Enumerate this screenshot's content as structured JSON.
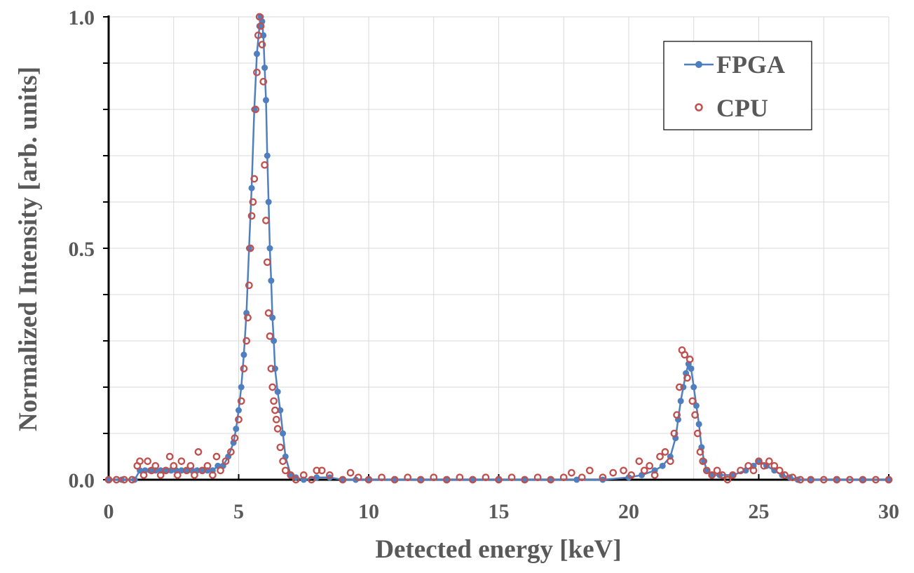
{
  "chart_data": {
    "type": "scatter",
    "xlabel": "Detected energy [keV]",
    "ylabel": "Normalized Intensity [arb. units]",
    "xlim": [
      0,
      30
    ],
    "ylim": [
      0,
      1.0
    ],
    "xticks": [
      "0",
      "5",
      "10",
      "15",
      "20",
      "25",
      "30"
    ],
    "yticks": [
      "0.0",
      "0.5",
      "1.0"
    ],
    "grid": true,
    "legend_position": "top-right",
    "series": [
      {
        "name": "FPGA",
        "style": "line-with-filled-markers",
        "color": "#4F7FBE",
        "x": [
          0.0,
          0.5,
          1.0,
          1.2,
          1.4,
          1.6,
          1.8,
          2.0,
          2.2,
          2.4,
          2.6,
          2.8,
          3.0,
          3.2,
          3.4,
          3.6,
          3.8,
          4.0,
          4.2,
          4.4,
          4.6,
          4.8,
          4.9,
          5.0,
          5.1,
          5.2,
          5.3,
          5.4,
          5.5,
          5.6,
          5.7,
          5.8,
          5.85,
          5.9,
          5.95,
          6.0,
          6.05,
          6.1,
          6.15,
          6.2,
          6.25,
          6.3,
          6.35,
          6.4,
          6.5,
          6.6,
          6.7,
          6.8,
          7.0,
          7.2,
          7.5,
          8.0,
          8.5,
          9.0,
          9.5,
          10.0,
          11.0,
          12.0,
          13.0,
          14.0,
          15.0,
          16.0,
          17.0,
          18.0,
          19.0,
          20.0,
          20.5,
          21.0,
          21.3,
          21.6,
          21.8,
          21.9,
          22.0,
          22.1,
          22.2,
          22.3,
          22.4,
          22.5,
          22.6,
          22.7,
          22.8,
          22.9,
          23.0,
          23.2,
          23.5,
          24.0,
          24.5,
          24.8,
          25.0,
          25.3,
          25.6,
          25.9,
          26.2,
          26.5,
          27.0,
          28.0,
          29.0,
          30.0
        ],
        "values": [
          0.0,
          0.0,
          0.0,
          0.02,
          0.02,
          0.02,
          0.02,
          0.02,
          0.02,
          0.02,
          0.02,
          0.02,
          0.02,
          0.02,
          0.02,
          0.02,
          0.02,
          0.02,
          0.03,
          0.03,
          0.05,
          0.08,
          0.11,
          0.15,
          0.2,
          0.27,
          0.36,
          0.5,
          0.63,
          0.8,
          0.92,
          0.98,
          1.0,
          0.99,
          0.96,
          0.89,
          0.82,
          0.7,
          0.6,
          0.5,
          0.43,
          0.35,
          0.3,
          0.24,
          0.19,
          0.15,
          0.1,
          0.05,
          0.01,
          0.005,
          0.0,
          0.005,
          0.005,
          0.0,
          0.0,
          0.0,
          0.0,
          0.0,
          0.0,
          0.0,
          0.0,
          0.0,
          0.0,
          0.0,
          0.0,
          0.005,
          0.01,
          0.02,
          0.03,
          0.05,
          0.09,
          0.13,
          0.17,
          0.2,
          0.23,
          0.25,
          0.24,
          0.2,
          0.16,
          0.12,
          0.07,
          0.04,
          0.02,
          0.01,
          0.01,
          0.01,
          0.02,
          0.03,
          0.04,
          0.03,
          0.02,
          0.01,
          0.005,
          0.0,
          0.0,
          0.0,
          0.0,
          0.0
        ]
      },
      {
        "name": "CPU",
        "style": "hollow-markers",
        "color": "#C0504D",
        "x": [
          0.0,
          0.3,
          0.6,
          0.9,
          1.1,
          1.2,
          1.35,
          1.5,
          1.65,
          1.8,
          2.0,
          2.2,
          2.35,
          2.5,
          2.65,
          2.8,
          3.0,
          3.15,
          3.3,
          3.45,
          3.6,
          3.8,
          4.0,
          4.15,
          4.3,
          4.5,
          4.7,
          4.85,
          5.0,
          5.1,
          5.2,
          5.3,
          5.35,
          5.4,
          5.45,
          5.5,
          5.55,
          5.6,
          5.65,
          5.7,
          5.75,
          5.8,
          5.85,
          5.9,
          5.95,
          6.0,
          6.05,
          6.1,
          6.15,
          6.2,
          6.25,
          6.3,
          6.35,
          6.4,
          6.45,
          6.5,
          6.6,
          6.7,
          6.8,
          7.0,
          7.2,
          7.5,
          7.8,
          8.0,
          8.2,
          8.5,
          9.0,
          9.3,
          9.6,
          10.0,
          10.5,
          11.0,
          11.5,
          12.0,
          12.5,
          13.0,
          13.5,
          14.0,
          14.5,
          15.0,
          15.5,
          16.0,
          16.5,
          17.0,
          17.5,
          17.8,
          18.2,
          18.5,
          19.0,
          19.4,
          19.8,
          20.1,
          20.4,
          20.6,
          20.8,
          21.0,
          21.2,
          21.4,
          21.6,
          21.75,
          21.85,
          21.95,
          22.05,
          22.15,
          22.25,
          22.35,
          22.45,
          22.55,
          22.65,
          22.75,
          22.85,
          23.0,
          23.2,
          23.4,
          23.6,
          23.8,
          24.0,
          24.3,
          24.6,
          24.8,
          25.0,
          25.2,
          25.4,
          25.6,
          25.8,
          26.0,
          26.3,
          26.6,
          27.0,
          27.5,
          28.0,
          28.5,
          29.0,
          29.5,
          30.0
        ],
        "values": [
          0.0,
          0.0,
          0.0,
          0.0,
          0.03,
          0.04,
          0.01,
          0.04,
          0.02,
          0.03,
          0.01,
          0.02,
          0.05,
          0.03,
          0.01,
          0.04,
          0.02,
          0.03,
          0.01,
          0.06,
          0.02,
          0.03,
          0.01,
          0.05,
          0.02,
          0.04,
          0.06,
          0.09,
          0.13,
          0.17,
          0.24,
          0.3,
          0.35,
          0.42,
          0.5,
          0.57,
          0.6,
          0.65,
          0.8,
          0.88,
          0.96,
          1.0,
          0.98,
          0.94,
          0.86,
          0.68,
          0.56,
          0.47,
          0.36,
          0.31,
          0.24,
          0.2,
          0.17,
          0.15,
          0.13,
          0.11,
          0.07,
          0.04,
          0.02,
          0.01,
          0.0,
          0.01,
          0.0,
          0.02,
          0.02,
          0.01,
          0.0,
          0.015,
          0.005,
          0.0,
          0.005,
          0.0,
          0.005,
          0.0,
          0.005,
          0.0,
          0.005,
          0.0,
          0.005,
          0.0,
          0.005,
          0.0,
          0.005,
          0.0,
          0.005,
          0.015,
          0.005,
          0.02,
          0.005,
          0.015,
          0.02,
          0.01,
          0.04,
          0.02,
          0.03,
          0.01,
          0.05,
          0.06,
          0.04,
          0.1,
          0.14,
          0.2,
          0.28,
          0.27,
          0.22,
          0.26,
          0.17,
          0.14,
          0.1,
          0.06,
          0.04,
          0.02,
          0.01,
          0.02,
          0.01,
          0.0,
          0.01,
          0.02,
          0.03,
          0.02,
          0.04,
          0.03,
          0.04,
          0.03,
          0.02,
          0.01,
          0.005,
          0.0,
          0.0,
          0.0,
          0.0,
          0.0,
          0.0,
          0.0,
          0.0
        ]
      }
    ]
  }
}
